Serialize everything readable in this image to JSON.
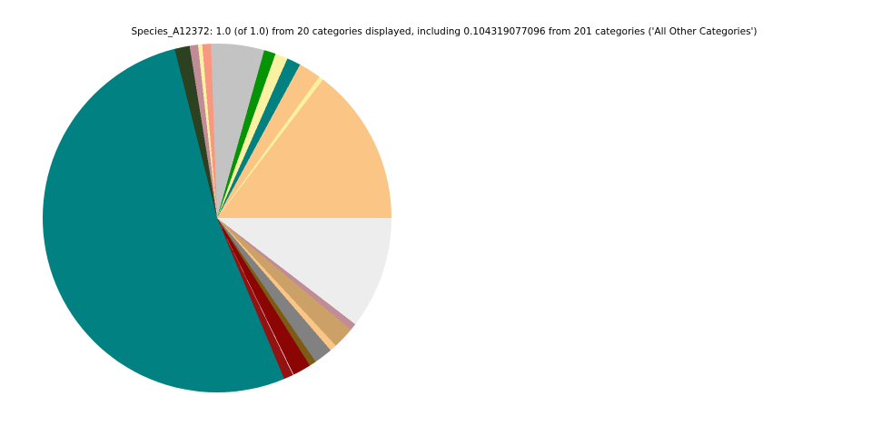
{
  "chart_title": "Species_A12372: 1.0 (of 1.0) from 20 categories displayed, including 0.104319077096 from 201 categories ('All Other Categories')",
  "chart_data": {
    "type": "pie",
    "title": "Species_A12372: 1.0 (of 1.0) from 20 categories displayed, including 0.104319077096 from 201 categories ('All Other Categories')",
    "species": "Species_A12372",
    "total_displayed": 1.0,
    "total_of": 1.0,
    "categories_displayed": 20,
    "all_other_categories": {
      "label": "All Other Categories",
      "value": 0.104319077096,
      "source_category_count": 201
    },
    "start_angle_deg": 0,
    "direction": "counterclockwise",
    "legend": "none",
    "slices": [
      {
        "color": "#FBC585",
        "value": 0.14611
      },
      {
        "color": "#FBF1A3",
        "value": 0.00417
      },
      {
        "color": "#FBC585",
        "value": 0.02083
      },
      {
        "color": "#038181",
        "value": 0.01278
      },
      {
        "color": "#FBF1A3",
        "value": 0.01167
      },
      {
        "color": "#059405",
        "value": 0.01083
      },
      {
        "color": "#C3C3C3",
        "value": 0.04917
      },
      {
        "color": "#F89880",
        "value": 0.00806
      },
      {
        "color": "#FBF1A3",
        "value": 0.00389
      },
      {
        "color": "#C08C97",
        "value": 0.00778
      },
      {
        "color": "#2B411F",
        "value": 0.01389
      },
      {
        "color": "#018181",
        "value": 0.52374
      },
      {
        "color": "#941212",
        "value": 0.00917
      },
      {
        "color": "#8B0505",
        "value": 0.01722
      },
      {
        "color": "#7D5B13",
        "value": 0.00639
      },
      {
        "color": "#818181",
        "value": 0.01722
      },
      {
        "color": "#FBC585",
        "value": 0.00639
      },
      {
        "color": "#CBA167",
        "value": 0.02
      },
      {
        "color": "#C08C97",
        "value": 0.00639
      },
      {
        "color": "#EDEDED",
        "value": 0.104319077096,
        "label": "All Other Categories"
      }
    ],
    "seam_after_slice_index": 13,
    "seam_color": "rgba(255,238,238,0.8)"
  }
}
